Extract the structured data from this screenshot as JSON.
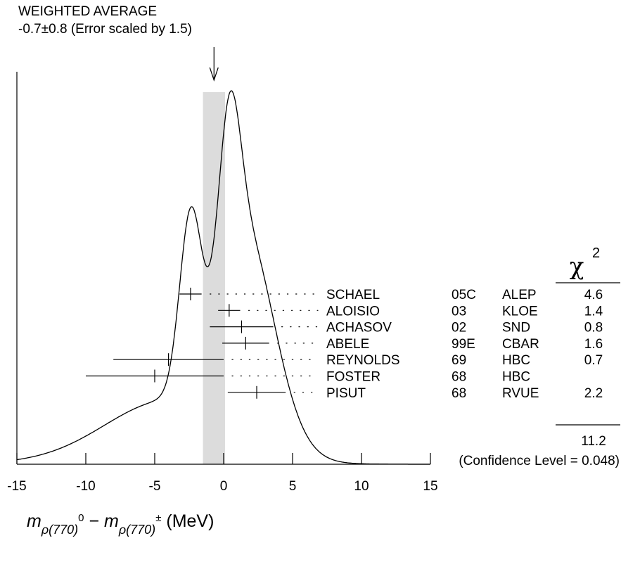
{
  "chart_data": {
    "type": "ideogram",
    "header": {
      "line1": "WEIGHTED AVERAGE",
      "line2": "-0.7±0.8 (Error scaled by 1.5)"
    },
    "weighted_average": {
      "value": -0.7,
      "error": 0.8,
      "error_scale": 1.5
    },
    "xlabel": "m_ρ(770)^0 − m_ρ(770)^± (MeV)",
    "xlabel_parts": {
      "m": "m",
      "sub1": "ρ(770)",
      "sup1": "0",
      "minus": "−",
      "sub2": "ρ(770)",
      "sup2": "±",
      "unit": "(MeV)"
    },
    "xlim": [
      -15,
      15
    ],
    "xticks": [
      -15,
      -10,
      -5,
      0,
      5,
      10,
      15
    ],
    "xtick_labels": [
      "-15",
      "-10",
      "-5",
      "0",
      "5",
      "10",
      "15"
    ],
    "chi2_header": "χ",
    "chi2_header_sup": "2",
    "measurements": [
      {
        "author": "SCHAEL",
        "year": "05C",
        "tech": "ALEP",
        "value": -2.4,
        "error": 0.8,
        "chi2": "4.6"
      },
      {
        "author": "ALOISIO",
        "year": "03",
        "tech": "KLOE",
        "value": 0.4,
        "error": 0.8,
        "chi2": "1.4"
      },
      {
        "author": "ACHASOV",
        "year": "02",
        "tech": "SND",
        "value": 1.3,
        "error": 2.3,
        "chi2": "0.8"
      },
      {
        "author": "ABELE",
        "year": "99E",
        "tech": "CBAR",
        "value": 1.6,
        "error": 1.7,
        "chi2": "1.6"
      },
      {
        "author": "REYNOLDS",
        "year": "69",
        "tech": "HBC",
        "value": -4.0,
        "error": 4.0,
        "chi2": "0.7"
      },
      {
        "author": "FOSTER",
        "year": "68",
        "tech": "HBC",
        "value": -5.0,
        "error": 5.0,
        "chi2": ""
      },
      {
        "author": "PISUT",
        "year": "68",
        "tech": "RVUE",
        "value": 2.4,
        "error": 2.1,
        "chi2": "2.2"
      }
    ],
    "chi2_total": "11.2",
    "confidence_level": "(Confidence Level = 0.048)"
  }
}
